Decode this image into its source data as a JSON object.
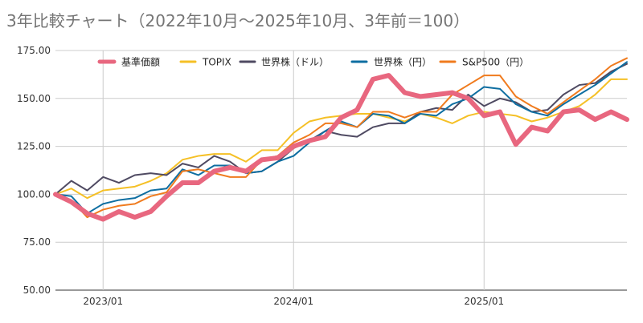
{
  "chart_data": {
    "type": "line",
    "title": "3年比較チャート（2022年10月〜2025年10月、3年前＝100）",
    "xlabel": "",
    "ylabel": "",
    "ylim": [
      50,
      175
    ],
    "yticks": [
      50,
      75,
      100,
      125,
      150,
      175
    ],
    "ytick_labels": [
      "50.00",
      "75.00",
      "100.00",
      "125.00",
      "150.00",
      "175.00"
    ],
    "x_axis": {
      "start_month": "2022-10",
      "end_month": "2025-10",
      "ticks": [
        {
          "label": "2023/01",
          "index": 3
        },
        {
          "label": "2024/01",
          "index": 15
        },
        {
          "label": "2025/01",
          "index": 27
        }
      ]
    },
    "grid": true,
    "legend_position": "top",
    "series": [
      {
        "name": "基準価額",
        "color": "#e8677f",
        "width": 6,
        "values": [
          100,
          96,
          90,
          87,
          91,
          88,
          91,
          99,
          106,
          106,
          112,
          114,
          112,
          118,
          119,
          125,
          128,
          130,
          140,
          144,
          160,
          162,
          153,
          151,
          152,
          153,
          150,
          141,
          143,
          126,
          135,
          133,
          143,
          144,
          139,
          143,
          139
        ]
      },
      {
        "name": "TOPIX",
        "color": "#f5c026",
        "width": 2,
        "values": [
          100,
          103,
          98,
          102,
          103,
          104,
          107,
          111,
          118,
          120,
          121,
          121,
          117,
          123,
          123,
          132,
          138,
          140,
          141,
          142,
          142,
          140,
          138,
          142,
          140,
          137,
          141,
          143,
          142,
          141,
          138,
          140,
          143,
          146,
          152,
          160,
          160
        ]
      },
      {
        "name": "世界株（ドル）",
        "color": "#4f4a62",
        "width": 2,
        "values": [
          100,
          107,
          102,
          109,
          106,
          110,
          111,
          110,
          116,
          114,
          120,
          117,
          111,
          112,
          117,
          124,
          128,
          133,
          131,
          130,
          135,
          137,
          137,
          143,
          145,
          144,
          152,
          146,
          150,
          148,
          143,
          144,
          152,
          157,
          158,
          164,
          168
        ]
      },
      {
        "name": "世界株（円）",
        "color": "#0e6ea1",
        "width": 2,
        "values": [
          100,
          99,
          90,
          95,
          97,
          98,
          102,
          103,
          113,
          110,
          115,
          115,
          111,
          112,
          117,
          120,
          127,
          133,
          138,
          135,
          142,
          141,
          137,
          142,
          141,
          147,
          150,
          156,
          155,
          147,
          143,
          141,
          147,
          152,
          157,
          163,
          169
        ]
      },
      {
        "name": "S&P500（円）",
        "color": "#f07b1e",
        "width": 2,
        "values": [
          100,
          97,
          88,
          92,
          94,
          95,
          99,
          101,
          112,
          113,
          111,
          109,
          109,
          118,
          120,
          127,
          131,
          137,
          137,
          135,
          143,
          143,
          140,
          143,
          143,
          152,
          157,
          162,
          162,
          151,
          146,
          142,
          148,
          154,
          160,
          167,
          171
        ]
      }
    ]
  }
}
